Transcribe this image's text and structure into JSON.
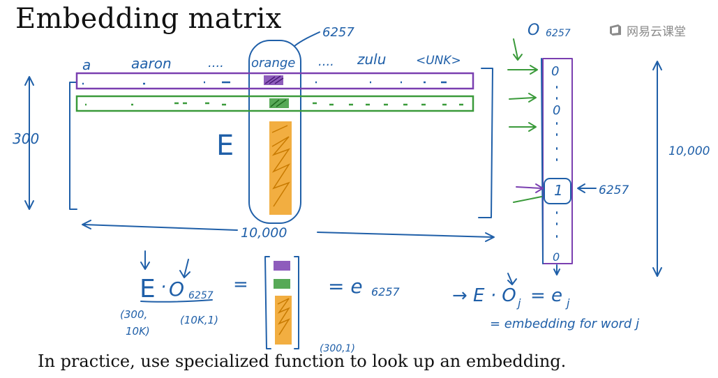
{
  "slide": {
    "title": "Embedding matrix",
    "caption": "In practice, use specialized function to look up an embedding.",
    "watermark": "网易云课堂"
  },
  "annotations": {
    "index_top": "6257",
    "one_hot_top": "O",
    "one_hot_top_sub": "6257",
    "vocab_a": "a",
    "vocab_aaron": "aaron",
    "vocab_dots1": "....",
    "vocab_orange": "orange",
    "vocab_dots2": "....",
    "vocab_zulu": "zulu",
    "vocab_unk": "<UNK>",
    "dim_300": "300",
    "matrix_E": "E",
    "dim_10000_bottom": "10,000",
    "dim_10000_right": "10,000",
    "one_hot_zero_top": "0",
    "one_hot_zero_mid": "0",
    "one_hot_one": "1",
    "one_hot_zero_bottom": "0",
    "pointer_6257": "6257",
    "eq_E": "E",
    "eq_dot": "·",
    "eq_O": "O",
    "eq_O_sub": "6257",
    "eq_equals": "=",
    "eq_result": "= e",
    "eq_result_sub": "6257",
    "shape_E_line1": "(300,",
    "shape_E_line2": "10K)",
    "shape_O": "(10K,1)",
    "shape_e": "(300,1)",
    "general_eq": "→ E · O",
    "general_eq_sub": "j",
    "general_eq_rhs": "= e",
    "general_eq_rhs_sub": "j",
    "general_note": "= embedding for word j"
  },
  "colors": {
    "ink_blue": "#1f5fa8",
    "purple": "#7a3fb0",
    "green": "#3a9a3a",
    "orange": "#f0a020",
    "text": "#111111",
    "watermark": "#8a8a8a"
  }
}
